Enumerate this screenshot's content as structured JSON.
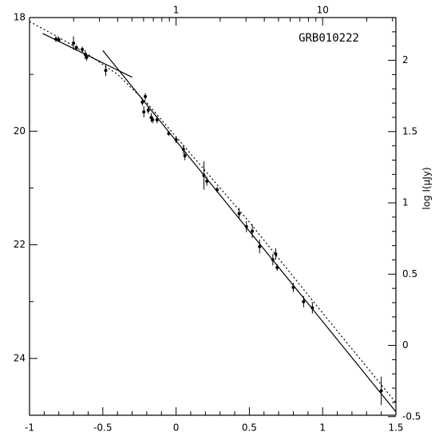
{
  "chart_data": {
    "type": "scatter",
    "annotation": "GRB010222",
    "y2label": "log I(μJy)",
    "xlim": [
      -1,
      1.5
    ],
    "xticks": [
      -1,
      -0.5,
      0,
      0.5,
      1,
      1.5
    ],
    "xminorticks": [
      -0.9,
      -0.8,
      -0.7,
      -0.6,
      -0.4,
      -0.3,
      -0.2,
      -0.1,
      0.1,
      0.2,
      0.3,
      0.4,
      0.6,
      0.7,
      0.8,
      0.9,
      1.1,
      1.2,
      1.3,
      1.4
    ],
    "ylim": [
      18,
      25
    ],
    "yinverted": true,
    "yticks": [
      18,
      20,
      22,
      24
    ],
    "yminorticks": [
      19,
      21,
      23,
      25
    ],
    "y2lim": [
      -0.49,
      2.3
    ],
    "y2ticks": [
      -0.5,
      0,
      0.5,
      1,
      1.5,
      2
    ],
    "y2minorticks": [
      -0.4,
      -0.3,
      -0.2,
      -0.1,
      0.1,
      0.2,
      0.3,
      0.4,
      0.6,
      0.7,
      0.8,
      0.9,
      1.1,
      1.2,
      1.3,
      1.4,
      1.6,
      1.7,
      1.8,
      1.9,
      2.1,
      2.2
    ],
    "x2lim": [
      0.1,
      31.62
    ],
    "x2log": true,
    "x2ticks": [
      1,
      10
    ],
    "x2minorticks": [
      0.2,
      0.3,
      0.4,
      0.5,
      0.6,
      0.7,
      0.8,
      0.9,
      2,
      3,
      4,
      5,
      6,
      7,
      8,
      9,
      20,
      30
    ],
    "color": "#000000",
    "series": [
      {
        "style": "points",
        "x": [
          -0.82,
          -0.8,
          -0.7,
          -0.68,
          -0.64,
          -0.62,
          -0.61,
          -0.48,
          -0.23,
          -0.21,
          -0.22,
          -0.19,
          -0.17,
          -0.16,
          -0.13,
          -0.05,
          0.0,
          0.05,
          0.06,
          0.19,
          0.21,
          0.28,
          0.43,
          0.48,
          0.52,
          0.57,
          0.66,
          0.68,
          0.69,
          0.8,
          0.87,
          0.93,
          1.4
        ],
        "values": [
          18.38,
          18.39,
          18.45,
          18.53,
          18.56,
          18.65,
          18.7,
          18.93,
          19.49,
          19.39,
          19.66,
          19.63,
          19.76,
          19.8,
          19.8,
          20.04,
          20.15,
          20.32,
          20.43,
          20.78,
          20.88,
          21.03,
          21.45,
          21.68,
          21.76,
          22.03,
          22.26,
          22.16,
          22.4,
          22.75,
          23.0,
          23.11,
          24.57
        ],
        "errors": [
          0.05,
          0.04,
          0.12,
          0.05,
          0.05,
          0.08,
          0.06,
          0.1,
          0.06,
          0.06,
          0.1,
          0.06,
          0.08,
          0.06,
          0.06,
          0.04,
          0.06,
          0.08,
          0.08,
          0.25,
          0.08,
          0.05,
          0.1,
          0.1,
          0.12,
          0.12,
          0.1,
          0.1,
          0.06,
          0.08,
          0.1,
          0.1,
          0.25
        ]
      },
      {
        "style": "solid",
        "x": [
          -0.91,
          -0.3
        ],
        "values": [
          18.28,
          19.05
        ]
      },
      {
        "style": "solid",
        "x": [
          -0.5,
          1.5
        ],
        "values": [
          18.58,
          24.94
        ]
      },
      {
        "style": "dotted",
        "x": [
          -1,
          -0.8,
          -0.6,
          -0.4,
          -0.3,
          -0.2,
          0,
          0.5,
          1,
          1.5
        ],
        "values": [
          18.07,
          18.35,
          18.65,
          19.0,
          19.25,
          19.5,
          20.1,
          21.6,
          23.2,
          24.78
        ]
      }
    ]
  }
}
